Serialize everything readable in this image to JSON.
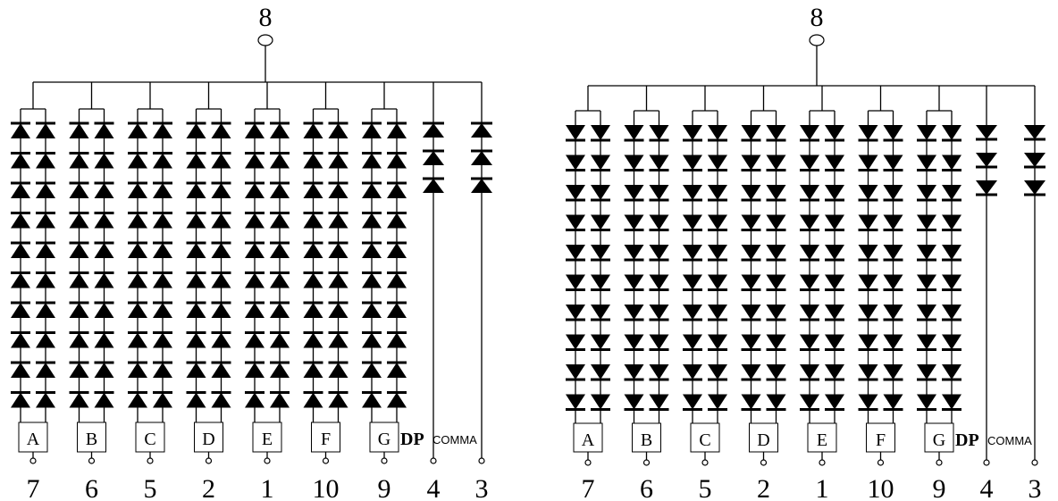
{
  "diagrams": [
    {
      "id": "common-anode",
      "direction": "up",
      "common_pin": "8",
      "segments": [
        {
          "label": "A",
          "pin": "7"
        },
        {
          "label": "B",
          "pin": "6"
        },
        {
          "label": "C",
          "pin": "5"
        },
        {
          "label": "D",
          "pin": "2"
        },
        {
          "label": "E",
          "pin": "1"
        },
        {
          "label": "F",
          "pin": "10"
        },
        {
          "label": "G",
          "pin": "9"
        }
      ],
      "dp": {
        "label": "DP",
        "pin": "4"
      },
      "comma": {
        "label": "COMMA",
        "pin": "3"
      }
    },
    {
      "id": "common-cathode",
      "direction": "down",
      "common_pin": "8",
      "segments": [
        {
          "label": "A",
          "pin": "7"
        },
        {
          "label": "B",
          "pin": "6"
        },
        {
          "label": "C",
          "pin": "5"
        },
        {
          "label": "D",
          "pin": "2"
        },
        {
          "label": "E",
          "pin": "1"
        },
        {
          "label": "F",
          "pin": "10"
        },
        {
          "label": "G",
          "pin": "9"
        }
      ],
      "dp": {
        "label": "DP",
        "pin": "4"
      },
      "comma": {
        "label": "COMMA",
        "pin": "3"
      }
    }
  ]
}
